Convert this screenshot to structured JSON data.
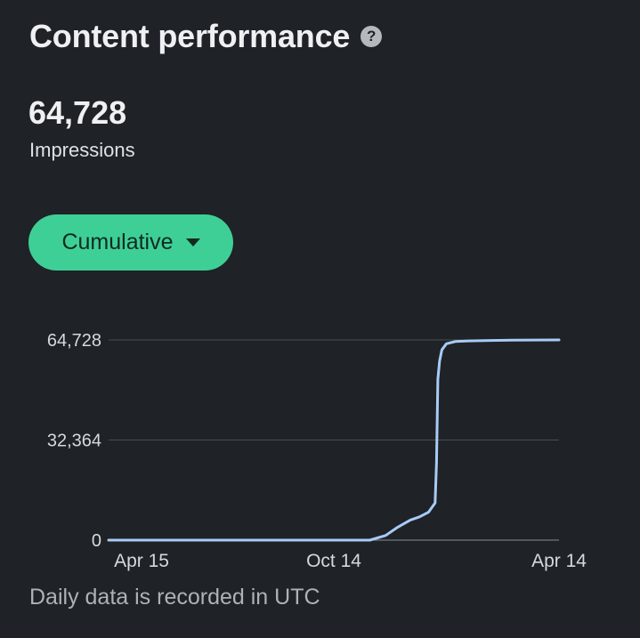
{
  "header": {
    "title": "Content performance",
    "help_icon": "help-circle-icon"
  },
  "metric": {
    "value": "64,728",
    "label": "Impressions"
  },
  "view_select": {
    "selected": "Cumulative"
  },
  "chart_data": {
    "type": "line",
    "y_ticks": [
      "64,728",
      "32,364",
      "0"
    ],
    "y_values": [
      64728,
      32364,
      0
    ],
    "ylim": [
      0,
      64728
    ],
    "x_ticks": [
      "Apr 15",
      "Oct 14",
      "Apr 14"
    ],
    "grid": true,
    "series": [
      {
        "color": "#a8cbf7",
        "x": [
          0,
          0.2,
          0.4,
          0.58,
          0.615,
          0.64,
          0.67,
          0.69,
          0.71,
          0.725,
          0.728,
          0.731,
          0.735,
          0.74,
          0.75,
          0.77,
          0.8,
          0.85,
          0.9,
          1.0
        ],
        "y": [
          0,
          0,
          0,
          0,
          1500,
          4000,
          6500,
          7500,
          9000,
          12000,
          25000,
          52000,
          58000,
          61500,
          63500,
          64200,
          64400,
          64550,
          64650,
          64728
        ]
      }
    ]
  },
  "footer": {
    "note": "Daily data is recorded in UTC"
  }
}
